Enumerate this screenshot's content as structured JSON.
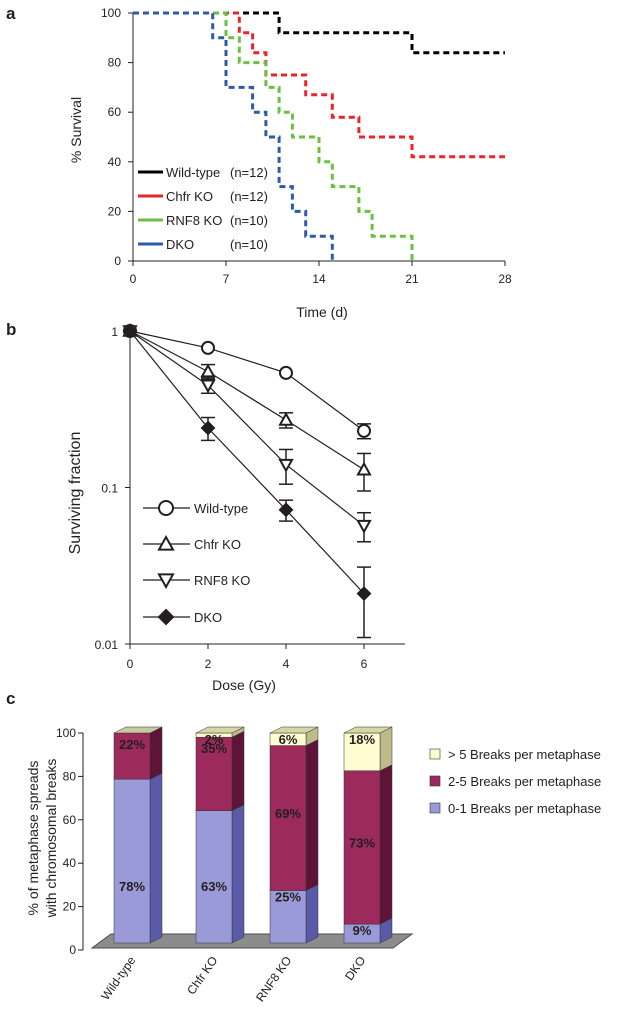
{
  "figure": {
    "panels": [
      "a",
      "b",
      "c"
    ]
  },
  "chart_data": [
    {
      "type": "line",
      "title": "",
      "xlabel": "Time (d)",
      "ylabel": "% Survival",
      "xlim": [
        0,
        28
      ],
      "ylim": [
        0,
        100
      ],
      "x_ticks": [
        0,
        7,
        14,
        21,
        28
      ],
      "y_ticks": [
        0,
        20,
        40,
        60,
        80,
        100
      ],
      "step": true,
      "series": [
        {
          "name": "Wild-type",
          "n": "(n=12)",
          "color": "#000000",
          "points": [
            [
              0,
              100
            ],
            [
              11,
              100
            ],
            [
              11,
              92
            ],
            [
              21,
              92
            ],
            [
              21,
              84
            ],
            [
              28,
              84
            ]
          ]
        },
        {
          "name": "Chfr KO",
          "n": "(n=12)",
          "color": "#e8252b",
          "points": [
            [
              0,
              100
            ],
            [
              8,
              100
            ],
            [
              8,
              92
            ],
            [
              9,
              92
            ],
            [
              9,
              84
            ],
            [
              10,
              84
            ],
            [
              10,
              75
            ],
            [
              13,
              75
            ],
            [
              13,
              67
            ],
            [
              15,
              67
            ],
            [
              15,
              58
            ],
            [
              17,
              58
            ],
            [
              17,
              50
            ],
            [
              21,
              50
            ],
            [
              21,
              42
            ],
            [
              28,
              42
            ]
          ]
        },
        {
          "name": "RNF8 KO",
          "n": "(n=10)",
          "color": "#6cbe45",
          "points": [
            [
              0,
              100
            ],
            [
              7,
              100
            ],
            [
              7,
              90
            ],
            [
              8,
              90
            ],
            [
              8,
              80
            ],
            [
              10,
              80
            ],
            [
              10,
              70
            ],
            [
              11,
              70
            ],
            [
              11,
              60
            ],
            [
              12,
              60
            ],
            [
              12,
              50
            ],
            [
              14,
              50
            ],
            [
              14,
              40
            ],
            [
              15,
              40
            ],
            [
              15,
              30
            ],
            [
              17,
              30
            ],
            [
              17,
              20
            ],
            [
              18,
              20
            ],
            [
              18,
              10
            ],
            [
              21,
              10
            ],
            [
              21,
              0
            ]
          ]
        },
        {
          "name": "DKO",
          "n": "(n=10)",
          "color": "#2e5aa8",
          "points": [
            [
              0,
              100
            ],
            [
              6,
              100
            ],
            [
              6,
              90
            ],
            [
              7,
              90
            ],
            [
              7,
              70
            ],
            [
              9,
              70
            ],
            [
              9,
              60
            ],
            [
              10,
              60
            ],
            [
              10,
              50
            ],
            [
              11,
              50
            ],
            [
              11,
              30
            ],
            [
              12,
              30
            ],
            [
              12,
              20
            ],
            [
              13,
              20
            ],
            [
              13,
              10
            ],
            [
              15,
              10
            ],
            [
              15,
              0
            ]
          ]
        }
      ]
    },
    {
      "type": "line",
      "title": "",
      "xlabel": "Dose (Gy)",
      "ylabel": "Surviving fraction",
      "yscale": "log",
      "xlim": [
        0,
        7
      ],
      "ylim": [
        0.01,
        1.2
      ],
      "x_ticks": [
        "0",
        "2",
        "4",
        "6"
      ],
      "y_ticks": [
        "1",
        "0.1",
        "0.01"
      ],
      "series": [
        {
          "name": "Wild-type",
          "marker": "open-circle",
          "x": [
            0,
            2,
            4,
            6
          ],
          "y": [
            1.0,
            0.78,
            0.54,
            0.23
          ],
          "err": [
            0,
            0,
            0,
            0.025
          ]
        },
        {
          "name": "Chfr  KO",
          "marker": "open-triangle-up",
          "x": [
            0,
            2,
            4,
            6
          ],
          "y": [
            1.0,
            0.55,
            0.27,
            0.13
          ],
          "err": [
            0,
            0.06,
            0.03,
            0.035
          ]
        },
        {
          "name": "RNF8 KO",
          "marker": "open-triangle-down",
          "x": [
            0,
            2,
            4,
            6
          ],
          "y": [
            1.0,
            0.45,
            0.14,
            0.057
          ],
          "err": [
            0,
            0.05,
            0.035,
            0.012
          ]
        },
        {
          "name": "DKO",
          "marker": "filled-diamond",
          "x": [
            0,
            2,
            4,
            6
          ],
          "y": [
            1.0,
            0.24,
            0.072,
            0.021
          ],
          "err": [
            0,
            0.04,
            0.011,
            0.01
          ]
        }
      ]
    },
    {
      "type": "bar",
      "stacked": true,
      "title": "",
      "xlabel": "",
      "ylabel": "% of metaphase spreads with chromosomal breaks",
      "ylabel_lines": [
        "% of metaphase spreads",
        "with chromosomal breaks"
      ],
      "ylim": [
        0,
        100
      ],
      "y_ticks": [
        0,
        20,
        40,
        60,
        80,
        100
      ],
      "categories": [
        "Wild-type",
        "Chfr KO",
        "RNF8 KO",
        "DKO"
      ],
      "series": [
        {
          "name": "0-1 Breaks per metaphase",
          "color": "#9b9ad8",
          "values": [
            78,
            63,
            25,
            9
          ],
          "labels": [
            "78%",
            "63%",
            "25%",
            "9%"
          ]
        },
        {
          "name": "2-5 Breaks per metaphase",
          "color": "#9c2a5d",
          "values": [
            22,
            35,
            69,
            73
          ],
          "labels": [
            "22%",
            "35%",
            "69%",
            "73%"
          ]
        },
        {
          "name": "> 5 Breaks per metaphase",
          "color": "#fefcd0",
          "values": [
            0,
            2,
            6,
            18
          ],
          "labels": [
            "",
            "2%",
            "6%",
            "18%"
          ]
        }
      ],
      "legend_order": [
        "> 5 Breaks per metaphase",
        "2-5 Breaks per metaphase",
        "0-1 Breaks per metaphase"
      ]
    }
  ]
}
